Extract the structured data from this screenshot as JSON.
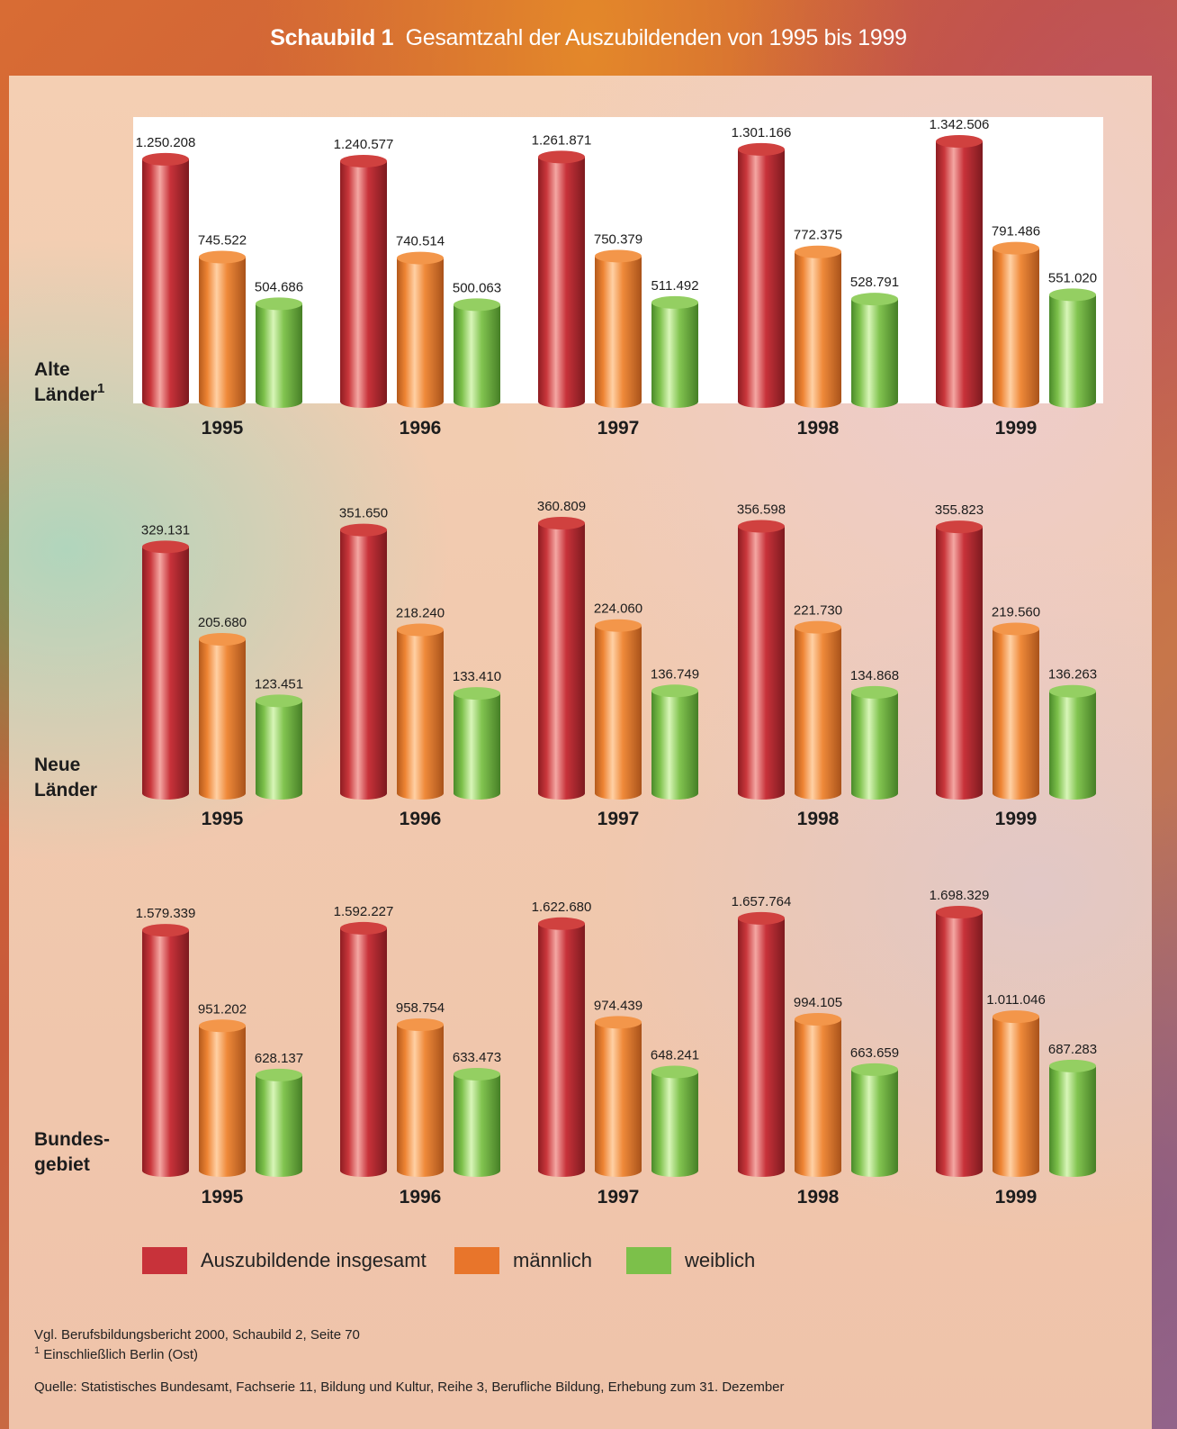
{
  "title": {
    "prefix": "Schaubild 1",
    "text": "Gesamtzahl der Auszubildenden von 1995 bis 1999"
  },
  "colors": {
    "insgesamt": "#c8323a",
    "maennlich": "#ee8433",
    "weiblich": "#7cc04a",
    "title_bar": "#e07a2e"
  },
  "chart_data": [
    {
      "type": "bar",
      "panel_label": [
        "Alte",
        "Länder"
      ],
      "panel_label_sup": "1",
      "categories": [
        "1995",
        "1996",
        "1997",
        "1998",
        "1999"
      ],
      "series": [
        {
          "name": "Auszubildende insgesamt",
          "values": [
            1250208,
            1240577,
            1261871,
            1301166,
            1342506
          ],
          "labels": [
            "1.250.208",
            "1.240.577",
            "1.261.871",
            "1.301.166",
            "1.342.506"
          ]
        },
        {
          "name": "männlich",
          "values": [
            745522,
            740514,
            750379,
            772375,
            791486
          ],
          "labels": [
            "745.522",
            "740.514",
            "750.379",
            "772.375",
            "791.486"
          ]
        },
        {
          "name": "weiblich",
          "values": [
            504686,
            500063,
            511492,
            528791,
            551020
          ],
          "labels": [
            "504.686",
            "500.063",
            "511.492",
            "528.791",
            "551.020"
          ]
        }
      ]
    },
    {
      "type": "bar",
      "panel_label": [
        "Neue",
        "Länder"
      ],
      "categories": [
        "1995",
        "1996",
        "1997",
        "1998",
        "1999"
      ],
      "series": [
        {
          "name": "Auszubildende insgesamt",
          "values": [
            329131,
            351650,
            360809,
            356598,
            355823
          ],
          "labels": [
            "329.131",
            "351.650",
            "360.809",
            "356.598",
            "355.823"
          ]
        },
        {
          "name": "männlich",
          "values": [
            205680,
            218240,
            224060,
            221730,
            219560
          ],
          "labels": [
            "205.680",
            "218.240",
            "224.060",
            "221.730",
            "219.560"
          ]
        },
        {
          "name": "weiblich",
          "values": [
            123451,
            133410,
            136749,
            134868,
            136263
          ],
          "labels": [
            "123.451",
            "133.410",
            "136.749",
            "134.868",
            "136.263"
          ]
        }
      ]
    },
    {
      "type": "bar",
      "panel_label": [
        "Bundes-",
        "gebiet"
      ],
      "categories": [
        "1995",
        "1996",
        "1997",
        "1998",
        "1999"
      ],
      "series": [
        {
          "name": "Auszubildende insgesamt",
          "values": [
            1579339,
            1592227,
            1622680,
            1657764,
            1698329
          ],
          "labels": [
            "1.579.339",
            "1.592.227",
            "1.622.680",
            "1.657.764",
            "1.698.329"
          ]
        },
        {
          "name": "männlich",
          "values": [
            951202,
            958754,
            974439,
            994105,
            1011046
          ],
          "labels": [
            "951.202",
            "958.754",
            "974.439",
            "994.105",
            "1.011.046"
          ]
        },
        {
          "name": "weiblich",
          "values": [
            628137,
            633473,
            648241,
            663659,
            687283
          ],
          "labels": [
            "628.137",
            "633.473",
            "648.241",
            "663.659",
            "687.283"
          ]
        }
      ]
    }
  ],
  "legend": {
    "items": [
      "Auszubildende insgesamt",
      "männlich",
      "weiblich"
    ]
  },
  "notes": {
    "reference": "Vgl. Berufsbildungsbericht 2000, Schaubild 2, Seite 70",
    "footnote_mark": "1",
    "footnote": "Einschließlich Berlin (Ost)",
    "source": "Quelle: Statistisches Bundesamt, Fachserie 11, Bildung und Kultur, Reihe 3, Berufliche Bildung, Erhebung zum 31. Dezember"
  }
}
